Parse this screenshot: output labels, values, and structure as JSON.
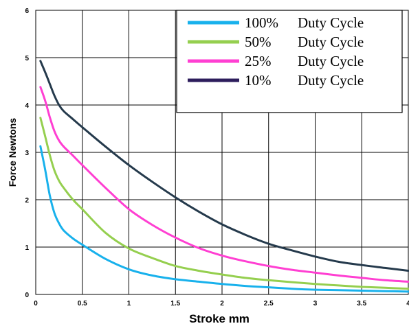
{
  "chart_data": {
    "type": "line",
    "title": "",
    "xlabel": "Stroke mm",
    "ylabel": "Force Newtons",
    "xlim": [
      0,
      4
    ],
    "ylim": [
      0,
      6
    ],
    "x_ticks": [
      "0",
      "0.5",
      "1",
      "1.5",
      "2",
      "2.5",
      "3",
      "3.5",
      "4"
    ],
    "y_ticks": [
      "0",
      "1",
      "2",
      "3",
      "4",
      "5",
      "6"
    ],
    "grid": true,
    "legend_position": "top-right",
    "series": [
      {
        "name": "10%",
        "label_suffix": "Duty Cycle",
        "color": "#253a4c",
        "legend_color": "#2d1d5c",
        "x": [
          0.05,
          0.1,
          0.15,
          0.2,
          0.25,
          0.3,
          0.4,
          0.5,
          0.75,
          1.0,
          1.25,
          1.5,
          1.75,
          2.0,
          2.25,
          2.5,
          2.75,
          3.0,
          3.25,
          3.5,
          3.75,
          4.0
        ],
        "y": [
          4.93,
          4.7,
          4.45,
          4.2,
          4.0,
          3.87,
          3.7,
          3.53,
          3.12,
          2.73,
          2.38,
          2.05,
          1.75,
          1.48,
          1.26,
          1.07,
          0.93,
          0.8,
          0.69,
          0.62,
          0.56,
          0.5
        ]
      },
      {
        "name": "25%",
        "label_suffix": "Duty Cycle",
        "color": "#ff3fd2",
        "legend_color": "#ff3fd2",
        "x": [
          0.05,
          0.1,
          0.15,
          0.2,
          0.25,
          0.3,
          0.4,
          0.5,
          0.75,
          1.0,
          1.25,
          1.5,
          1.75,
          2.0,
          2.25,
          2.5,
          2.75,
          3.0,
          3.25,
          3.5,
          3.75,
          4.0
        ],
        "y": [
          4.38,
          4.1,
          3.75,
          3.45,
          3.25,
          3.12,
          2.93,
          2.73,
          2.25,
          1.8,
          1.47,
          1.2,
          0.98,
          0.82,
          0.7,
          0.6,
          0.52,
          0.46,
          0.4,
          0.35,
          0.3,
          0.27
        ]
      },
      {
        "name": "50%",
        "label_suffix": "Duty Cycle",
        "color": "#95cf4f",
        "legend_color": "#95cf4f",
        "x": [
          0.05,
          0.1,
          0.15,
          0.2,
          0.25,
          0.3,
          0.4,
          0.5,
          0.75,
          1.0,
          1.25,
          1.5,
          1.75,
          2.0,
          2.25,
          2.5,
          2.75,
          3.0,
          3.25,
          3.5,
          3.75,
          4.0
        ],
        "y": [
          3.73,
          3.35,
          2.95,
          2.62,
          2.4,
          2.25,
          2.0,
          1.8,
          1.3,
          0.97,
          0.77,
          0.6,
          0.5,
          0.42,
          0.35,
          0.3,
          0.26,
          0.22,
          0.19,
          0.16,
          0.14,
          0.12
        ]
      },
      {
        "name": "100%",
        "label_suffix": "Duty Cycle",
        "color": "#18b1ec",
        "legend_color": "#18b1ec",
        "x": [
          0.05,
          0.1,
          0.15,
          0.2,
          0.25,
          0.3,
          0.4,
          0.5,
          0.75,
          1.0,
          1.25,
          1.5,
          1.75,
          2.0,
          2.25,
          2.5,
          2.75,
          3.0,
          3.25,
          3.5,
          3.75,
          4.0
        ],
        "y": [
          3.13,
          2.65,
          2.1,
          1.72,
          1.5,
          1.35,
          1.18,
          1.05,
          0.75,
          0.53,
          0.4,
          0.32,
          0.27,
          0.22,
          0.18,
          0.15,
          0.12,
          0.1,
          0.09,
          0.08,
          0.07,
          0.06
        ]
      }
    ],
    "legend_order": [
      "100%",
      "50%",
      "25%",
      "10%"
    ]
  }
}
